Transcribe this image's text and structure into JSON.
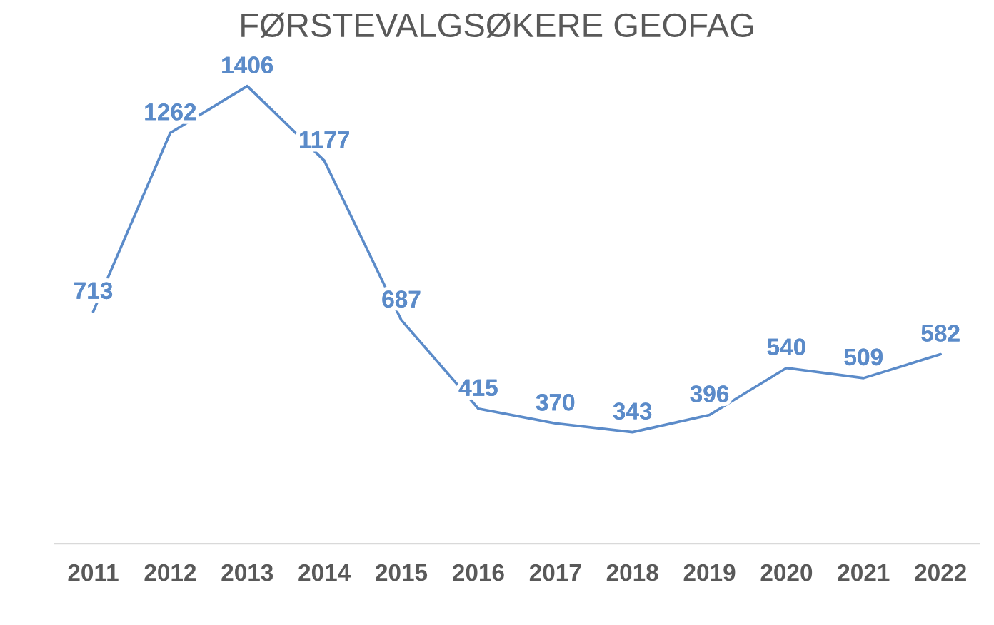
{
  "chart_data": {
    "type": "line",
    "title": "FØRSTEVALGSØKERE GEOFAG",
    "categories": [
      "2011",
      "2012",
      "2013",
      "2014",
      "2015",
      "2016",
      "2017",
      "2018",
      "2019",
      "2020",
      "2021",
      "2022"
    ],
    "series": [
      {
        "color": "#5b8bc9",
        "values": [
          713,
          1262,
          1406,
          1177,
          687,
          415,
          370,
          343,
          396,
          540,
          509,
          582
        ]
      }
    ],
    "tick_labels": "x",
    "data_labels": true,
    "grid": false,
    "legend": false,
    "marker": "none",
    "line_style": "solid"
  }
}
